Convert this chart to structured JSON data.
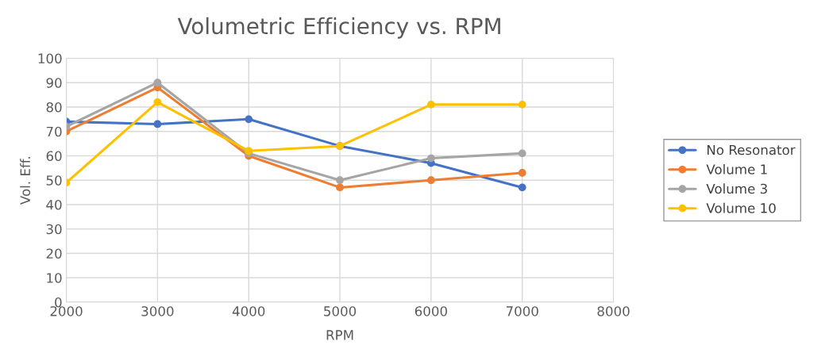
{
  "chart_data": {
    "type": "line",
    "title": "Volumetric Efficiency vs. RPM",
    "xlabel": "RPM",
    "ylabel": "Vol. Eff.",
    "x": [
      2000,
      3000,
      4000,
      5000,
      6000,
      7000
    ],
    "series": [
      {
        "name": "No Resonator",
        "color": "#4472c4",
        "values": [
          74,
          73,
          75,
          64,
          57,
          47
        ]
      },
      {
        "name": "Volume 1",
        "color": "#ed7d31",
        "values": [
          70,
          88,
          60,
          47,
          50,
          53
        ]
      },
      {
        "name": "Volume 3",
        "color": "#a5a5a5",
        "values": [
          72,
          90,
          61,
          50,
          59,
          61
        ]
      },
      {
        "name": "Volume 10",
        "color": "#ffc000",
        "values": [
          49,
          82,
          62,
          64,
          81,
          81
        ]
      }
    ],
    "xlim": [
      2000,
      8000
    ],
    "xticks": [
      2000,
      3000,
      4000,
      5000,
      6000,
      7000,
      8000
    ],
    "ylim": [
      0,
      100
    ],
    "yticks": [
      0,
      10,
      20,
      30,
      40,
      50,
      60,
      70,
      80,
      90,
      100
    ],
    "grid": true,
    "legend": "right",
    "marker": "circle",
    "line_style": "solid"
  }
}
